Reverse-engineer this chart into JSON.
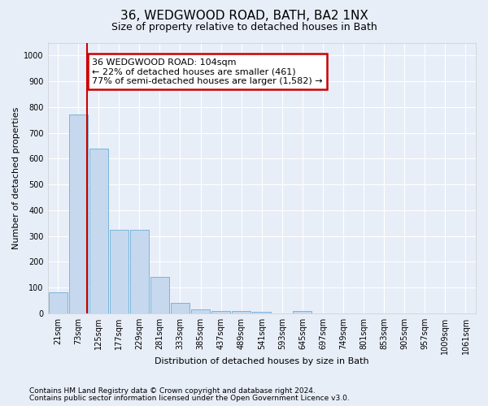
{
  "title": "36, WEDGWOOD ROAD, BATH, BA2 1NX",
  "subtitle": "Size of property relative to detached houses in Bath",
  "xlabel": "Distribution of detached houses by size in Bath",
  "ylabel": "Number of detached properties",
  "categories": [
    "21sqm",
    "73sqm",
    "125sqm",
    "177sqm",
    "229sqm",
    "281sqm",
    "333sqm",
    "385sqm",
    "437sqm",
    "489sqm",
    "541sqm",
    "593sqm",
    "645sqm",
    "697sqm",
    "749sqm",
    "801sqm",
    "853sqm",
    "905sqm",
    "957sqm",
    "1009sqm",
    "1061sqm"
  ],
  "values": [
    80,
    770,
    640,
    325,
    325,
    140,
    40,
    15,
    10,
    8,
    5,
    0,
    10,
    0,
    0,
    0,
    0,
    0,
    0,
    0,
    0
  ],
  "bar_color": "#c5d8ee",
  "bar_edgecolor": "#6baed6",
  "vline_color": "#cc0000",
  "vline_pos": 1.43,
  "annotation_text": "36 WEDGWOOD ROAD: 104sqm\n← 22% of detached houses are smaller (461)\n77% of semi-detached houses are larger (1,582) →",
  "annotation_box_facecolor": "#ffffff",
  "annotation_box_edgecolor": "#cc0000",
  "ylim": [
    0,
    1050
  ],
  "yticks": [
    0,
    100,
    200,
    300,
    400,
    500,
    600,
    700,
    800,
    900,
    1000
  ],
  "bg_color": "#e8eef8",
  "fig_bg_color": "#e8eef8",
  "footer_line1": "Contains HM Land Registry data © Crown copyright and database right 2024.",
  "footer_line2": "Contains public sector information licensed under the Open Government Licence v3.0.",
  "title_fontsize": 11,
  "subtitle_fontsize": 9,
  "annot_fontsize": 8,
  "tick_fontsize": 7,
  "axis_label_fontsize": 8,
  "footer_fontsize": 6.5
}
